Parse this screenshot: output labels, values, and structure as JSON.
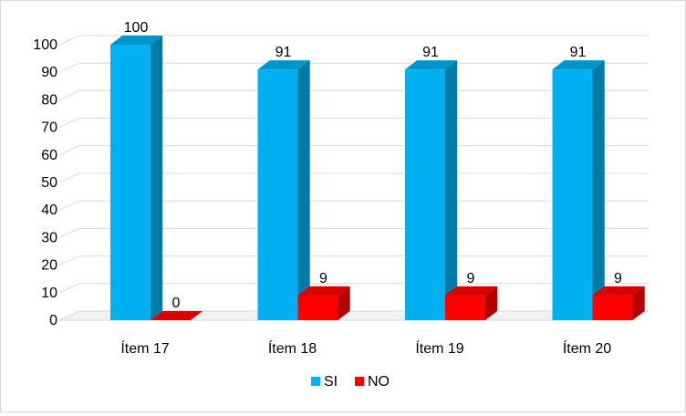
{
  "chart_data": {
    "type": "bar",
    "style": "3d-clustered-column",
    "title": "",
    "xlabel": "",
    "ylabel": "",
    "categories": [
      "Ítem 17",
      "Ítem 18",
      "Ítem 19",
      "Ítem 20"
    ],
    "series": [
      {
        "name": "SI",
        "values": [
          100,
          91,
          91,
          91
        ],
        "color": "#00b0f0"
      },
      {
        "name": "NO",
        "values": [
          0,
          9,
          9,
          9
        ],
        "color": "#ff0000"
      }
    ],
    "ylim": [
      0,
      100
    ],
    "yticks": [
      0,
      10,
      20,
      30,
      40,
      50,
      60,
      70,
      80,
      90,
      100
    ],
    "grid": true,
    "data_labels": true,
    "legend_position": "bottom"
  }
}
